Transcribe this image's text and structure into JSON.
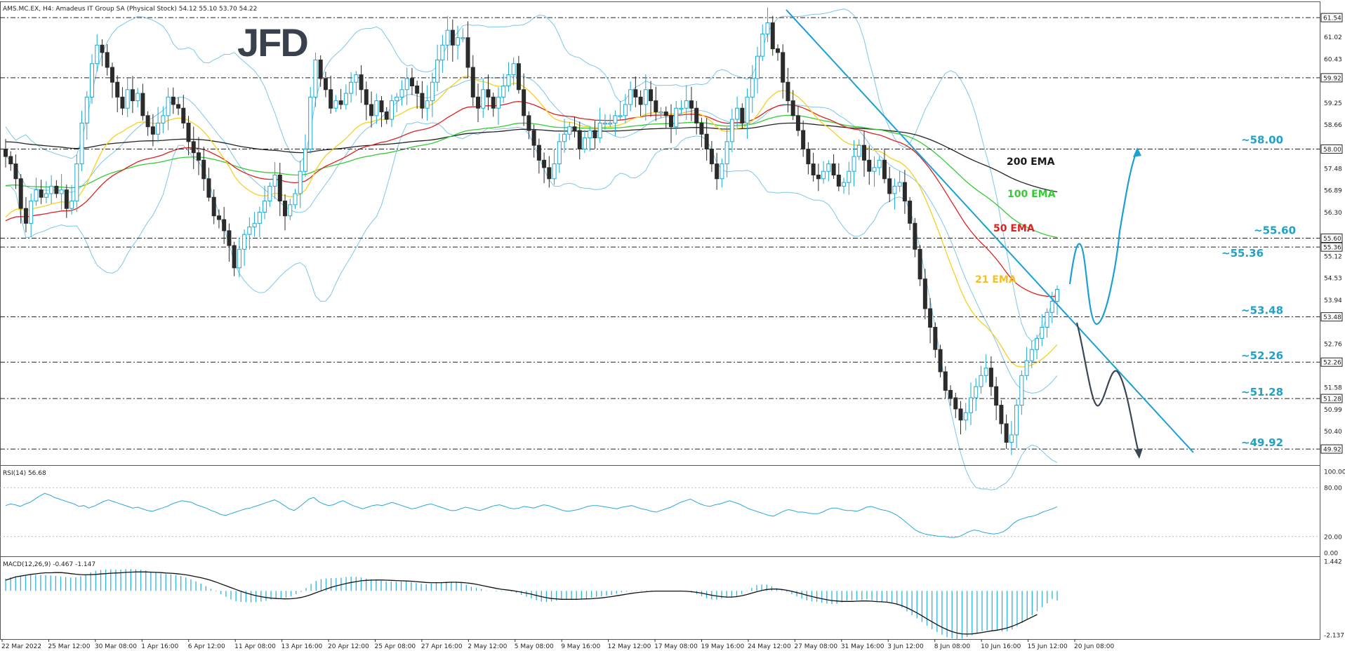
{
  "header": {
    "title": "AMS.MC.EX, H4:  Amadeus IT Group SA (Physical Stock)  54.12 55.10 53.70 54.22"
  },
  "logo": {
    "text": "JFD"
  },
  "chart_data": [
    {
      "type": "candlestick",
      "ylim": [
        49.6,
        61.75
      ],
      "grid": false,
      "y_ticks": [
        61.02,
        60.43,
        59.25,
        58.66,
        57.48,
        56.89,
        56.3,
        55.12,
        54.53,
        53.94,
        52.76,
        51.58,
        50.99,
        50.4
      ],
      "x_labels": [
        "22 Mar 2022",
        "25 Mar 12:00",
        "30 Mar 08:00",
        "1 Apr 16:00",
        "6 Apr 12:00",
        "11 Apr 08:00",
        "13 Apr 16:00",
        "20 Apr 12:00",
        "25 Apr 08:00",
        "27 Apr 16:00",
        "2 May 12:00",
        "5 May 08:00",
        "9 May 16:00",
        "12 May 12:00",
        "17 May 08:00",
        "19 May 16:00",
        "24 May 12:00",
        "27 May 08:00",
        "31 May 16:00",
        "3 Jun 12:00",
        "8 Jun 08:00",
        "10 Jun 16:00",
        "15 Jun 12:00",
        "20 Jun 08:00"
      ],
      "price_levels": [
        {
          "value": 61.54,
          "tag": "61.54",
          "label": ""
        },
        {
          "value": 59.92,
          "tag": "59.92",
          "label": ""
        },
        {
          "value": 58.0,
          "tag": "58.00",
          "label": "~58.00"
        },
        {
          "value": 55.6,
          "tag": "55.60",
          "label": "~55.60"
        },
        {
          "value": 55.36,
          "tag": "55.36",
          "label": "~55.36"
        },
        {
          "value": 53.48,
          "tag": "53.48",
          "label": "~53.48"
        },
        {
          "value": 52.26,
          "tag": "52.26",
          "label": "~52.26"
        },
        {
          "value": 51.28,
          "tag": "51.28",
          "label": "~51.28"
        },
        {
          "value": 49.92,
          "tag": "49.92",
          "label": "~49.92"
        }
      ],
      "closes": [
        57.8,
        57.6,
        57.2,
        56.4,
        56.0,
        56.6,
        56.9,
        56.7,
        56.8,
        57.0,
        56.8,
        56.9,
        56.4,
        56.6,
        57.6,
        58.7,
        59.4,
        60.3,
        60.8,
        60.6,
        60.2,
        59.8,
        59.4,
        59.1,
        59.6,
        59.3,
        59.5,
        58.9,
        58.6,
        58.4,
        58.7,
        58.9,
        59.4,
        59.2,
        59.1,
        58.7,
        58.2,
        57.9,
        57.7,
        57.2,
        56.7,
        56.2,
        56.1,
        55.8,
        55.4,
        54.8,
        55.3,
        55.7,
        55.9,
        56.0,
        56.3,
        56.6,
        57.0,
        57.3,
        56.6,
        56.2,
        56.5,
        56.8,
        57.4,
        58.0,
        59.4,
        60.4,
        59.9,
        59.6,
        59.1,
        59.3,
        59.2,
        59.5,
        59.8,
        60.0,
        59.6,
        59.2,
        58.9,
        59.3,
        59.0,
        58.8,
        59.3,
        59.4,
        59.6,
        59.9,
        59.7,
        59.5,
        59.1,
        59.3,
        59.8,
        60.4,
        60.8,
        61.2,
        60.8,
        61.0,
        61.0,
        60.2,
        59.4,
        59.1,
        59.6,
        59.4,
        59.1,
        59.4,
        59.7,
        60.0,
        60.3,
        59.6,
        58.9,
        58.5,
        58.1,
        57.7,
        57.5,
        57.2,
        57.6,
        58.2,
        58.4,
        58.6,
        58.5,
        58.0,
        58.3,
        58.5,
        58.3,
        58.7,
        58.7,
        58.7,
        58.9,
        58.9,
        59.2,
        59.6,
        59.4,
        59.2,
        59.6,
        59.3,
        59.0,
        59.0,
        58.9,
        58.6,
        59.1,
        59.1,
        59.3,
        59.1,
        58.7,
        58.4,
        58.0,
        57.6,
        57.2,
        57.6,
        58.2,
        58.8,
        59.1,
        58.7,
        59.4,
        59.9,
        60.5,
        61.1,
        61.4,
        60.7,
        60.6,
        59.8,
        59.3,
        58.9,
        58.5,
        58.0,
        57.6,
        57.3,
        57.2,
        57.4,
        57.6,
        57.3,
        57.0,
        57.1,
        57.4,
        57.8,
        58.1,
        57.7,
        57.4,
        57.5,
        57.7,
        57.2,
        56.8,
        57.0,
        57.1,
        56.6,
        56.0,
        55.3,
        54.5,
        53.7,
        53.2,
        52.6,
        52.0,
        51.5,
        51.3,
        51.0,
        50.7,
        50.9,
        51.3,
        51.6,
        51.9,
        52.1,
        51.6,
        51.1,
        50.6,
        50.1,
        50.3,
        51.1,
        51.9,
        52.3,
        52.6,
        52.9,
        53.2,
        53.6,
        53.9,
        54.22
      ]
    },
    {
      "type": "line",
      "title": "RSI(14) 56.68",
      "ylim": [
        0,
        100
      ],
      "y_ticks": [
        100.0,
        80.0,
        20.0,
        0.0
      ],
      "levels": [
        80,
        20
      ],
      "values": [
        58,
        60,
        59,
        57,
        60,
        62,
        66,
        70,
        73,
        71,
        68,
        66,
        64,
        62,
        60,
        57,
        58,
        55,
        57,
        60,
        63,
        65,
        63,
        61,
        59,
        57,
        55,
        56,
        54,
        52,
        51,
        53,
        55,
        57,
        60,
        62,
        64,
        63,
        62,
        59,
        57,
        55,
        52,
        50,
        47,
        46,
        48,
        50,
        52,
        54,
        55,
        57,
        59,
        61,
        63,
        65,
        62,
        58,
        54,
        52,
        56,
        61,
        66,
        68,
        63,
        60,
        58,
        59,
        62,
        64,
        61,
        58,
        56,
        54,
        56,
        58,
        59,
        58,
        60,
        62,
        60,
        58,
        56,
        54,
        55,
        57,
        59,
        60,
        58,
        56,
        54,
        52,
        52,
        54,
        56,
        55,
        53,
        52,
        54,
        56,
        58,
        59,
        57,
        55,
        54,
        55,
        57,
        56,
        55,
        57,
        59,
        58,
        56,
        54,
        52,
        51,
        52,
        53,
        55,
        57,
        58,
        58,
        57,
        56,
        55,
        54,
        56,
        57,
        58,
        56,
        54,
        53,
        51,
        50,
        52,
        54,
        56,
        59,
        62,
        64,
        66,
        63,
        60,
        58,
        57,
        59,
        60,
        62,
        64,
        62,
        60,
        57,
        54,
        52,
        50,
        48,
        46,
        45,
        48,
        51,
        53,
        52,
        50,
        50,
        49,
        48,
        48,
        50,
        53,
        55,
        55,
        53,
        52,
        52,
        51,
        53,
        56,
        57,
        55,
        53,
        52,
        50,
        47,
        43,
        38,
        33,
        28,
        25,
        23,
        22,
        21,
        20,
        20,
        19,
        19,
        20,
        23,
        26,
        28,
        27,
        25,
        24,
        23,
        24,
        26,
        30,
        36,
        40,
        42,
        44,
        45,
        47,
        50,
        52,
        54,
        56.68
      ]
    },
    {
      "type": "bar+line",
      "title": "MACD(12,26,9) -0.467 -1.147",
      "ylim": [
        -2.137,
        1.442
      ],
      "y_ticks": [
        1.442,
        -2.137
      ],
      "histogram": [
        0.6,
        0.66,
        0.71,
        0.74,
        0.76,
        0.77,
        0.78,
        0.78,
        0.77,
        0.75,
        0.73,
        0.7,
        0.67,
        0.65,
        0.66,
        0.71,
        0.8,
        0.9,
        0.98,
        1.02,
        1.04,
        1.05,
        1.04,
        1.04,
        1.06,
        1.06,
        1.05,
        1.03,
        0.99,
        0.94,
        0.89,
        0.85,
        0.82,
        0.8,
        0.77,
        0.72,
        0.65,
        0.56,
        0.46,
        0.35,
        0.23,
        0.1,
        -0.03,
        -0.16,
        -0.29,
        -0.42,
        -0.5,
        -0.54,
        -0.55,
        -0.56,
        -0.55,
        -0.52,
        -0.48,
        -0.42,
        -0.39,
        -0.37,
        -0.33,
        -0.26,
        -0.16,
        -0.05,
        0.14,
        0.34,
        0.48,
        0.57,
        0.6,
        0.62,
        0.62,
        0.64,
        0.67,
        0.69,
        0.68,
        0.65,
        0.6,
        0.57,
        0.53,
        0.49,
        0.46,
        0.45,
        0.45,
        0.46,
        0.45,
        0.43,
        0.38,
        0.34,
        0.33,
        0.36,
        0.39,
        0.43,
        0.44,
        0.45,
        0.45,
        0.39,
        0.3,
        0.2,
        0.15,
        0.09,
        0.02,
        -0.01,
        -0.03,
        -0.02,
        0.01,
        -0.03,
        -0.1,
        -0.19,
        -0.28,
        -0.37,
        -0.45,
        -0.52,
        -0.54,
        -0.51,
        -0.47,
        -0.43,
        -0.41,
        -0.43,
        -0.42,
        -0.39,
        -0.38,
        -0.33,
        -0.3,
        -0.27,
        -0.23,
        -0.2,
        -0.14,
        -0.07,
        -0.04,
        -0.02,
        0.02,
        0.03,
        0.03,
        0.02,
        0.01,
        -0.02,
        -0.01,
        -0.01,
        0.01,
        0.01,
        -0.03,
        -0.08,
        -0.16,
        -0.26,
        -0.36,
        -0.42,
        -0.42,
        -0.37,
        -0.33,
        -0.33,
        -0.26,
        -0.15,
        -0.01,
        0.14,
        0.29,
        0.31,
        0.3,
        0.22,
        0.13,
        0.04,
        -0.05,
        -0.16,
        -0.27,
        -0.37,
        -0.46,
        -0.51,
        -0.53,
        -0.57,
        -0.62,
        -0.64,
        -0.62,
        -0.56,
        -0.47,
        -0.45,
        -0.45,
        -0.44,
        -0.42,
        -0.45,
        -0.5,
        -0.52,
        -0.53,
        -0.58,
        -0.68,
        -0.82,
        -1.0,
        -1.18,
        -1.33,
        -1.51,
        -1.69,
        -1.86,
        -2.0,
        -2.13,
        -2.25,
        -2.31,
        -2.35,
        -2.32,
        -2.24,
        -2.15,
        -2.05,
        -1.96,
        -1.92,
        -1.92,
        -1.94,
        -1.97,
        -1.96,
        -1.87,
        -1.72,
        -1.55,
        -1.37,
        -1.18,
        -0.99,
        -0.79,
        -0.6,
        -0.39,
        -0.467
      ],
      "signal": [
        0.52,
        0.6,
        0.68,
        0.72,
        0.76,
        0.8,
        0.83,
        0.86,
        0.88,
        0.88,
        0.89,
        0.89,
        0.87,
        0.84,
        0.81,
        0.79,
        0.78,
        0.79,
        0.8,
        0.82,
        0.84,
        0.86,
        0.87,
        0.88,
        0.9,
        0.91,
        0.92,
        0.92,
        0.92,
        0.91,
        0.9,
        0.89,
        0.87,
        0.86,
        0.84,
        0.81,
        0.78,
        0.74,
        0.69,
        0.64,
        0.58,
        0.51,
        0.43,
        0.34,
        0.25,
        0.16,
        0.07,
        -0.02,
        -0.1,
        -0.17,
        -0.23,
        -0.28,
        -0.32,
        -0.35,
        -0.37,
        -0.38,
        -0.39,
        -0.38,
        -0.36,
        -0.32,
        -0.26,
        -0.18,
        -0.09,
        0.0,
        0.09,
        0.17,
        0.24,
        0.3,
        0.36,
        0.41,
        0.45,
        0.49,
        0.51,
        0.52,
        0.53,
        0.53,
        0.52,
        0.51,
        0.5,
        0.49,
        0.48,
        0.47,
        0.45,
        0.43,
        0.41,
        0.4,
        0.4,
        0.4,
        0.41,
        0.42,
        0.42,
        0.41,
        0.39,
        0.36,
        0.32,
        0.27,
        0.22,
        0.17,
        0.12,
        0.08,
        0.05,
        0.02,
        -0.02,
        -0.06,
        -0.11,
        -0.16,
        -0.22,
        -0.28,
        -0.33,
        -0.37,
        -0.39,
        -0.41,
        -0.41,
        -0.41,
        -0.41,
        -0.4,
        -0.39,
        -0.38,
        -0.36,
        -0.34,
        -0.31,
        -0.28,
        -0.24,
        -0.2,
        -0.16,
        -0.12,
        -0.09,
        -0.06,
        -0.04,
        -0.02,
        -0.01,
        -0.01,
        -0.01,
        -0.01,
        -0.01,
        -0.01,
        -0.02,
        -0.04,
        -0.07,
        -0.11,
        -0.16,
        -0.21,
        -0.25,
        -0.28,
        -0.3,
        -0.3,
        -0.28,
        -0.24,
        -0.18,
        -0.11,
        -0.04,
        0.02,
        0.07,
        0.09,
        0.09,
        0.07,
        0.03,
        -0.02,
        -0.08,
        -0.14,
        -0.21,
        -0.27,
        -0.33,
        -0.38,
        -0.43,
        -0.47,
        -0.49,
        -0.51,
        -0.51,
        -0.51,
        -0.5,
        -0.49,
        -0.49,
        -0.5,
        -0.52,
        -0.53,
        -0.55,
        -0.59,
        -0.64,
        -0.72,
        -0.82,
        -0.94,
        -1.07,
        -1.21,
        -1.36,
        -1.5,
        -1.64,
        -1.77,
        -1.88,
        -1.98,
        -2.05,
        -2.09,
        -2.1,
        -2.09,
        -2.06,
        -2.02,
        -1.98,
        -1.94,
        -1.91,
        -1.86,
        -1.8,
        -1.72,
        -1.62,
        -1.51,
        -1.39,
        -1.27,
        -1.147
      ]
    }
  ],
  "overlay_labels": {
    "ema200": "200 EMA",
    "ema100": "100 EMA",
    "ema50": "50 EMA",
    "ema21": "21 EMA"
  },
  "colors": {
    "bull_body": "#ffffff",
    "bull_outline": "#17a9d6",
    "bear_body": "#2b2b2b",
    "bollinger": "#7cc6ea",
    "ema200": "#222222",
    "ema100": "#33cc33",
    "ema50": "#e02020",
    "ema21": "#f5d020",
    "trend": "#1aa0d2",
    "projection_bull": "#1aa0d2",
    "projection_bear": "#3b4654",
    "level_line": "#222222",
    "label_blue": "#22a0c8",
    "macd_hist": "#2fb3e0",
    "rsi_line": "#2aa8d8"
  }
}
